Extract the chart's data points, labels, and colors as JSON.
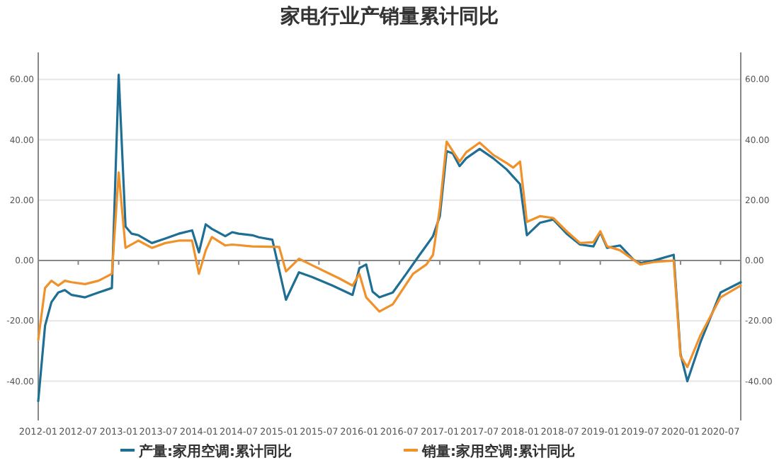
{
  "chart_data": {
    "type": "line",
    "title": "家电行业产销量累计同比",
    "xlim": [
      "2012-01",
      "2020-10"
    ],
    "xticks": [
      "2012-01",
      "2012-07",
      "2013-01",
      "2013-07",
      "2014-01",
      "2014-07",
      "2015-01",
      "2015-07",
      "2016-01",
      "2016-07",
      "2017-01",
      "2017-07",
      "2018-01",
      "2018-07",
      "2019-01",
      "2019-07",
      "2020-01",
      "2020-07"
    ],
    "ylim": [
      -53,
      69
    ],
    "yticks": [
      {
        "value": -40,
        "label": "-40.00"
      },
      {
        "value": -20,
        "label": "-20.00"
      },
      {
        "value": 0,
        "label": "0.00"
      },
      {
        "value": 20,
        "label": "20.00"
      },
      {
        "value": 40,
        "label": "40.00"
      },
      {
        "value": 60,
        "label": "60.00"
      }
    ],
    "y2lim": [
      -53,
      69
    ],
    "y2ticks": [
      {
        "value": -40,
        "label": "-40.00"
      },
      {
        "value": -20,
        "label": "-20.00"
      },
      {
        "value": 0,
        "label": "0.00"
      },
      {
        "value": 20,
        "label": "20.00"
      },
      {
        "value": 40,
        "label": "40.00"
      },
      {
        "value": 60,
        "label": "60.00"
      }
    ],
    "grid": "y",
    "legend": "bottom",
    "marker": "none",
    "line_style": "solid",
    "series": [
      {
        "name": "产量:家用空调:累计同比",
        "color": "#1f6e94",
        "x": [
          "2012-01",
          "2012-02",
          "2012-03",
          "2012-04",
          "2012-05",
          "2012-06",
          "2012-08",
          "2012-10",
          "2012-12",
          "2013-01",
          "2013-02",
          "2013-03",
          "2013-04",
          "2013-06",
          "2013-08",
          "2013-10",
          "2013-12",
          "2014-01",
          "2014-02",
          "2014-03",
          "2014-05",
          "2014-06",
          "2014-07",
          "2014-09",
          "2014-10",
          "2014-12",
          "2015-02",
          "2015-04",
          "2015-06",
          "2015-09",
          "2015-12",
          "2016-01",
          "2016-02",
          "2016-03",
          "2016-04",
          "2016-06",
          "2016-08",
          "2016-10",
          "2016-11",
          "2016-12",
          "2017-01",
          "2017-02",
          "2017-03",
          "2017-04",
          "2017-05",
          "2017-07",
          "2017-09",
          "2017-11",
          "2018-01",
          "2018-02",
          "2018-04",
          "2018-06",
          "2018-08",
          "2018-10",
          "2018-12",
          "2019-01",
          "2019-02",
          "2019-04",
          "2019-06",
          "2019-07",
          "2019-09",
          "2019-12",
          "2020-01",
          "2020-02",
          "2020-04",
          "2020-07",
          "2020-10"
        ],
        "values": [
          -46.6,
          -21.6,
          -13.8,
          -10.6,
          -9.8,
          -11.4,
          -12.2,
          -10.6,
          -9.1,
          61.6,
          11.3,
          8.9,
          8.4,
          5.8,
          7.3,
          8.9,
          10,
          2.7,
          12,
          10.5,
          8.1,
          9.4,
          8.9,
          8.4,
          7.7,
          6.9,
          -13,
          -3.9,
          -5.5,
          -8.3,
          -11.4,
          -2.5,
          -1.3,
          -10.3,
          -12.2,
          -10.6,
          -4.4,
          1.9,
          5,
          8.1,
          14.7,
          36.3,
          35.5,
          31.3,
          33.9,
          37,
          33.9,
          30.2,
          25.3,
          8.4,
          12.5,
          13.6,
          8.9,
          5.3,
          4.7,
          9.4,
          4.2,
          5,
          0.3,
          -0.9,
          0,
          1.9,
          -31,
          -40,
          -27,
          -10.6,
          -7.2
        ]
      },
      {
        "name": "销量:家用空调:累计同比",
        "color": "#f0912a",
        "x": [
          "2012-01",
          "2012-02",
          "2012-03",
          "2012-04",
          "2012-05",
          "2012-06",
          "2012-08",
          "2012-10",
          "2012-12",
          "2013-01",
          "2013-02",
          "2013-04",
          "2013-06",
          "2013-08",
          "2013-10",
          "2013-12",
          "2014-01",
          "2014-02",
          "2014-03",
          "2014-05",
          "2014-06",
          "2014-09",
          "2015-01",
          "2015-02",
          "2015-04",
          "2015-06",
          "2015-10",
          "2015-12",
          "2016-01",
          "2016-02",
          "2016-04",
          "2016-06",
          "2016-09",
          "2016-11",
          "2016-12",
          "2017-01",
          "2017-02",
          "2017-04",
          "2017-05",
          "2017-07",
          "2017-09",
          "2017-11",
          "2017-12",
          "2018-01",
          "2018-02",
          "2018-04",
          "2018-06",
          "2018-08",
          "2018-10",
          "2018-12",
          "2019-01",
          "2019-02",
          "2019-04",
          "2019-07",
          "2019-09",
          "2019-12",
          "2020-01",
          "2020-02",
          "2020-04",
          "2020-07",
          "2020-10"
        ],
        "values": [
          -26.3,
          -9.1,
          -6.7,
          -8.3,
          -6.7,
          -7.2,
          -7.8,
          -6.7,
          -4.4,
          29.2,
          4.2,
          6.6,
          4.2,
          5.8,
          6.6,
          6.6,
          -4.4,
          3.4,
          7.8,
          5,
          5.3,
          4.7,
          4.5,
          -3.6,
          0.6,
          -1.6,
          -5.9,
          -8.3,
          -4.4,
          -12.2,
          -16.9,
          -14.5,
          -4.4,
          -1.3,
          1.9,
          17.5,
          39.4,
          32.8,
          35.9,
          39.1,
          35,
          32.3,
          30.8,
          32.8,
          12.8,
          14.7,
          14.1,
          9.7,
          5.8,
          6.1,
          9.7,
          4.7,
          3.4,
          -1.3,
          -0.5,
          0,
          -31.7,
          -35.3,
          -24.7,
          -12.2,
          -8.3
        ]
      }
    ]
  }
}
